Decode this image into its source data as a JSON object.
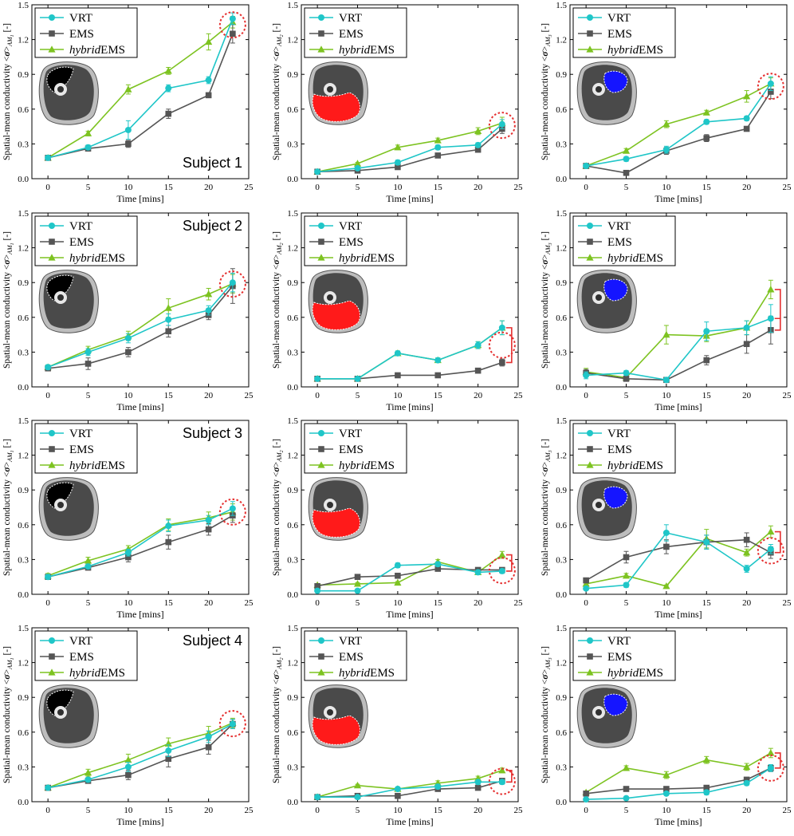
{
  "common": {
    "xlabel": "Time [mins]",
    "ylabel_prefix": "Spatial-mean conductivity <",
    "ylabel_sigma": "σ",
    "ylabel_mid": ">",
    "ylabel_unit": " [-]",
    "xticks": [
      "0",
      "5",
      "10",
      "15",
      "20",
      "25"
    ],
    "yticks": [
      "0.0",
      "0.3",
      "0.6",
      "0.9",
      "1.2",
      "1.5"
    ],
    "legend": [
      "VRT",
      "EMS",
      "hybridEMS"
    ],
    "legend_hybrid_italic": "hybrid",
    "legend_hybrid_rest": "EMS",
    "xlim": [
      -2,
      25
    ],
    "ylim": [
      0,
      1.5
    ],
    "x": [
      0,
      5,
      10,
      15,
      20,
      23
    ],
    "colors": {
      "VRT": "#1fc6c8",
      "EMS": "#555555",
      "hybridEMS": "#7dc321",
      "AM1": "#000000",
      "AM2": "#ff1a1a",
      "AM3": "#1515ff",
      "marker": "#e53030"
    }
  },
  "chart_data": [
    {
      "type": "line",
      "subject": "Subject 1",
      "muscle": "AM",
      "muscle_sub": "1",
      "region_label": "AM1",
      "series": [
        {
          "name": "VRT",
          "values": [
            0.18,
            0.27,
            0.42,
            0.78,
            0.85,
            1.38
          ],
          "errors": [
            0.02,
            0.02,
            0.08,
            0.03,
            0.03,
            0.05
          ]
        },
        {
          "name": "EMS",
          "values": [
            0.18,
            0.26,
            0.3,
            0.56,
            0.72,
            1.25
          ],
          "errors": [
            0.01,
            0.02,
            0.03,
            0.04,
            0.02,
            0.08
          ]
        },
        {
          "name": "hybridEMS",
          "values": [
            0.18,
            0.39,
            0.77,
            0.93,
            1.18,
            1.35
          ],
          "errors": [
            0.01,
            0.02,
            0.04,
            0.03,
            0.07,
            0.05
          ]
        }
      ],
      "annotation": "circle"
    },
    {
      "type": "line",
      "muscle": "AM",
      "muscle_sub": "2",
      "region_label": "AM2",
      "series": [
        {
          "name": "VRT",
          "values": [
            0.06,
            0.09,
            0.14,
            0.27,
            0.29,
            0.47
          ],
          "errors": [
            0.01,
            0.01,
            0.02,
            0.02,
            0.02,
            0.04
          ]
        },
        {
          "name": "EMS",
          "values": [
            0.06,
            0.07,
            0.1,
            0.2,
            0.25,
            0.43
          ],
          "errors": [
            0.01,
            0.01,
            0.01,
            0.02,
            0.02,
            0.04
          ]
        },
        {
          "name": "hybridEMS",
          "values": [
            0.06,
            0.13,
            0.27,
            0.33,
            0.41,
            0.48
          ],
          "errors": [
            0.01,
            0.01,
            0.02,
            0.02,
            0.03,
            0.05
          ]
        }
      ],
      "annotation": "circle"
    },
    {
      "type": "line",
      "muscle": "AM",
      "muscle_sub": "3",
      "region_label": "AM3",
      "series": [
        {
          "name": "VRT",
          "values": [
            0.11,
            0.17,
            0.25,
            0.49,
            0.52,
            0.82
          ],
          "errors": [
            0.01,
            0.02,
            0.03,
            0.02,
            0.02,
            0.06
          ]
        },
        {
          "name": "EMS",
          "values": [
            0.11,
            0.05,
            0.24,
            0.35,
            0.43,
            0.75
          ],
          "errors": [
            0.01,
            0.01,
            0.03,
            0.03,
            0.02,
            0.06
          ]
        },
        {
          "name": "hybridEMS",
          "values": [
            0.11,
            0.24,
            0.47,
            0.57,
            0.71,
            0.82
          ],
          "errors": [
            0.01,
            0.02,
            0.03,
            0.02,
            0.05,
            0.05
          ]
        }
      ],
      "annotation": "circle"
    },
    {
      "type": "line",
      "subject": "Subject 2",
      "muscle": "AM",
      "muscle_sub": "1",
      "region_label": "AM1",
      "series": [
        {
          "name": "VRT",
          "values": [
            0.17,
            0.3,
            0.42,
            0.58,
            0.66,
            0.9
          ],
          "errors": [
            0.02,
            0.03,
            0.04,
            0.05,
            0.04,
            0.08
          ]
        },
        {
          "name": "EMS",
          "values": [
            0.16,
            0.2,
            0.3,
            0.48,
            0.62,
            0.87
          ],
          "errors": [
            0.02,
            0.05,
            0.04,
            0.05,
            0.04,
            0.15
          ]
        },
        {
          "name": "hybridEMS",
          "values": [
            0.17,
            0.32,
            0.44,
            0.68,
            0.8,
            0.89
          ],
          "errors": [
            0.02,
            0.03,
            0.04,
            0.08,
            0.05,
            0.08
          ]
        }
      ],
      "annotation": "circle"
    },
    {
      "type": "line",
      "muscle": "AM",
      "muscle_sub": "2",
      "region_label": "AM2",
      "series": [
        {
          "name": "VRT",
          "values": [
            0.07,
            0.07,
            0.29,
            0.23,
            0.36,
            0.51
          ],
          "errors": [
            0.01,
            0.01,
            0.02,
            0.02,
            0.03,
            0.06
          ]
        },
        {
          "name": "EMS",
          "values": [
            0.07,
            0.07,
            0.1,
            0.1,
            0.14,
            0.21
          ],
          "errors": [
            0.01,
            0.01,
            0.01,
            0.01,
            0.01,
            0.03
          ]
        },
        {
          "name": "hybridEMS",
          "values": [
            0.07,
            0.07,
            0.29,
            0.23,
            0.36,
            0.51
          ],
          "errors": [
            0.01,
            0.01,
            0.02,
            0.02,
            0.03,
            0.06
          ]
        }
      ],
      "annotation": "circle-bracket"
    },
    {
      "type": "line",
      "muscle": "AM",
      "muscle_sub": "3",
      "region_label": "AM3",
      "series": [
        {
          "name": "VRT",
          "values": [
            0.1,
            0.12,
            0.06,
            0.48,
            0.51,
            0.59
          ],
          "errors": [
            0.03,
            0.02,
            0.02,
            0.08,
            0.06,
            0.12
          ]
        },
        {
          "name": "EMS",
          "values": [
            0.12,
            0.07,
            0.06,
            0.23,
            0.37,
            0.49
          ],
          "errors": [
            0.03,
            0.02,
            0.02,
            0.04,
            0.08,
            0.12
          ]
        },
        {
          "name": "hybridEMS",
          "values": [
            0.13,
            0.08,
            0.45,
            0.44,
            0.51,
            0.84
          ],
          "errors": [
            0.03,
            0.02,
            0.08,
            0.05,
            0.06,
            0.08
          ]
        }
      ],
      "annotation": "bracket"
    },
    {
      "type": "line",
      "subject": "Subject 3",
      "muscle": "AM",
      "muscle_sub": "1",
      "region_label": "AM1",
      "series": [
        {
          "name": "VRT",
          "values": [
            0.15,
            0.24,
            0.36,
            0.59,
            0.64,
            0.74
          ],
          "errors": [
            0.02,
            0.02,
            0.03,
            0.05,
            0.04,
            0.06
          ]
        },
        {
          "name": "EMS",
          "values": [
            0.15,
            0.23,
            0.32,
            0.45,
            0.56,
            0.68
          ],
          "errors": [
            0.02,
            0.02,
            0.04,
            0.06,
            0.05,
            0.06
          ]
        },
        {
          "name": "hybridEMS",
          "values": [
            0.16,
            0.29,
            0.39,
            0.6,
            0.66,
            0.71
          ],
          "errors": [
            0.02,
            0.03,
            0.03,
            0.05,
            0.05,
            0.07
          ]
        }
      ],
      "annotation": "circle"
    },
    {
      "type": "line",
      "muscle": "AM",
      "muscle_sub": "2",
      "region_label": "AM2",
      "series": [
        {
          "name": "VRT",
          "values": [
            0.03,
            0.03,
            0.25,
            0.26,
            0.19,
            0.2
          ],
          "errors": [
            0.01,
            0.01,
            0.02,
            0.02,
            0.02,
            0.02
          ]
        },
        {
          "name": "EMS",
          "values": [
            0.07,
            0.15,
            0.16,
            0.22,
            0.21,
            0.21
          ],
          "errors": [
            0.01,
            0.01,
            0.01,
            0.02,
            0.02,
            0.02
          ]
        },
        {
          "name": "hybridEMS",
          "values": [
            0.08,
            0.09,
            0.1,
            0.28,
            0.19,
            0.34
          ],
          "errors": [
            0.01,
            0.01,
            0.01,
            0.02,
            0.02,
            0.03
          ]
        }
      ],
      "annotation": "circle-bracket"
    },
    {
      "type": "line",
      "muscle": "AM",
      "muscle_sub": "3",
      "region_label": "AM3",
      "series": [
        {
          "name": "VRT",
          "values": [
            0.05,
            0.08,
            0.53,
            0.45,
            0.22,
            0.39
          ],
          "errors": [
            0.01,
            0.02,
            0.07,
            0.06,
            0.03,
            0.04
          ]
        },
        {
          "name": "EMS",
          "values": [
            0.12,
            0.32,
            0.41,
            0.45,
            0.47,
            0.36
          ],
          "errors": [
            0.01,
            0.05,
            0.06,
            0.06,
            0.06,
            0.05
          ]
        },
        {
          "name": "hybridEMS",
          "values": [
            0.09,
            0.16,
            0.07,
            0.48,
            0.36,
            0.54
          ],
          "errors": [
            0.01,
            0.02,
            0.01,
            0.08,
            0.03,
            0.05
          ]
        }
      ],
      "annotation": "circle-bracket"
    },
    {
      "type": "line",
      "subject": "Subject 4",
      "muscle": "AM",
      "muscle_sub": "1",
      "region_label": "AM1",
      "series": [
        {
          "name": "VRT",
          "values": [
            0.12,
            0.19,
            0.3,
            0.44,
            0.56,
            0.67
          ],
          "errors": [
            0.01,
            0.02,
            0.04,
            0.05,
            0.05,
            0.04
          ]
        },
        {
          "name": "EMS",
          "values": [
            0.12,
            0.18,
            0.23,
            0.37,
            0.47,
            0.67
          ],
          "errors": [
            0.01,
            0.02,
            0.04,
            0.07,
            0.06,
            0.04
          ]
        },
        {
          "name": "hybridEMS",
          "values": [
            0.12,
            0.25,
            0.36,
            0.5,
            0.59,
            0.68
          ],
          "errors": [
            0.01,
            0.03,
            0.05,
            0.05,
            0.06,
            0.04
          ]
        }
      ],
      "annotation": "circle"
    },
    {
      "type": "line",
      "muscle": "AM",
      "muscle_sub": "2",
      "region_label": "AM2",
      "series": [
        {
          "name": "VRT",
          "values": [
            0.04,
            0.04,
            0.11,
            0.13,
            0.17,
            0.17
          ],
          "errors": [
            0.01,
            0.01,
            0.01,
            0.02,
            0.02,
            0.02
          ]
        },
        {
          "name": "EMS",
          "values": [
            0.04,
            0.05,
            0.05,
            0.11,
            0.12,
            0.18
          ],
          "errors": [
            0.01,
            0.01,
            0.01,
            0.02,
            0.02,
            0.02
          ]
        },
        {
          "name": "hybridEMS",
          "values": [
            0.04,
            0.14,
            0.11,
            0.16,
            0.2,
            0.27
          ],
          "errors": [
            0.01,
            0.01,
            0.01,
            0.02,
            0.02,
            0.02
          ]
        }
      ],
      "annotation": "circle-bracket"
    },
    {
      "type": "line",
      "muscle": "AM",
      "muscle_sub": "3",
      "region_label": "AM3",
      "series": [
        {
          "name": "VRT",
          "values": [
            0.02,
            0.03,
            0.07,
            0.08,
            0.16,
            0.29
          ],
          "errors": [
            0.01,
            0.01,
            0.01,
            0.02,
            0.02,
            0.03
          ]
        },
        {
          "name": "EMS",
          "values": [
            0.07,
            0.11,
            0.11,
            0.12,
            0.19,
            0.29
          ],
          "errors": [
            0.01,
            0.01,
            0.01,
            0.02,
            0.02,
            0.03
          ]
        },
        {
          "name": "hybridEMS",
          "values": [
            0.08,
            0.29,
            0.23,
            0.36,
            0.3,
            0.42
          ],
          "errors": [
            0.01,
            0.02,
            0.03,
            0.03,
            0.03,
            0.04
          ]
        }
      ],
      "annotation": "circle-bracket"
    }
  ]
}
